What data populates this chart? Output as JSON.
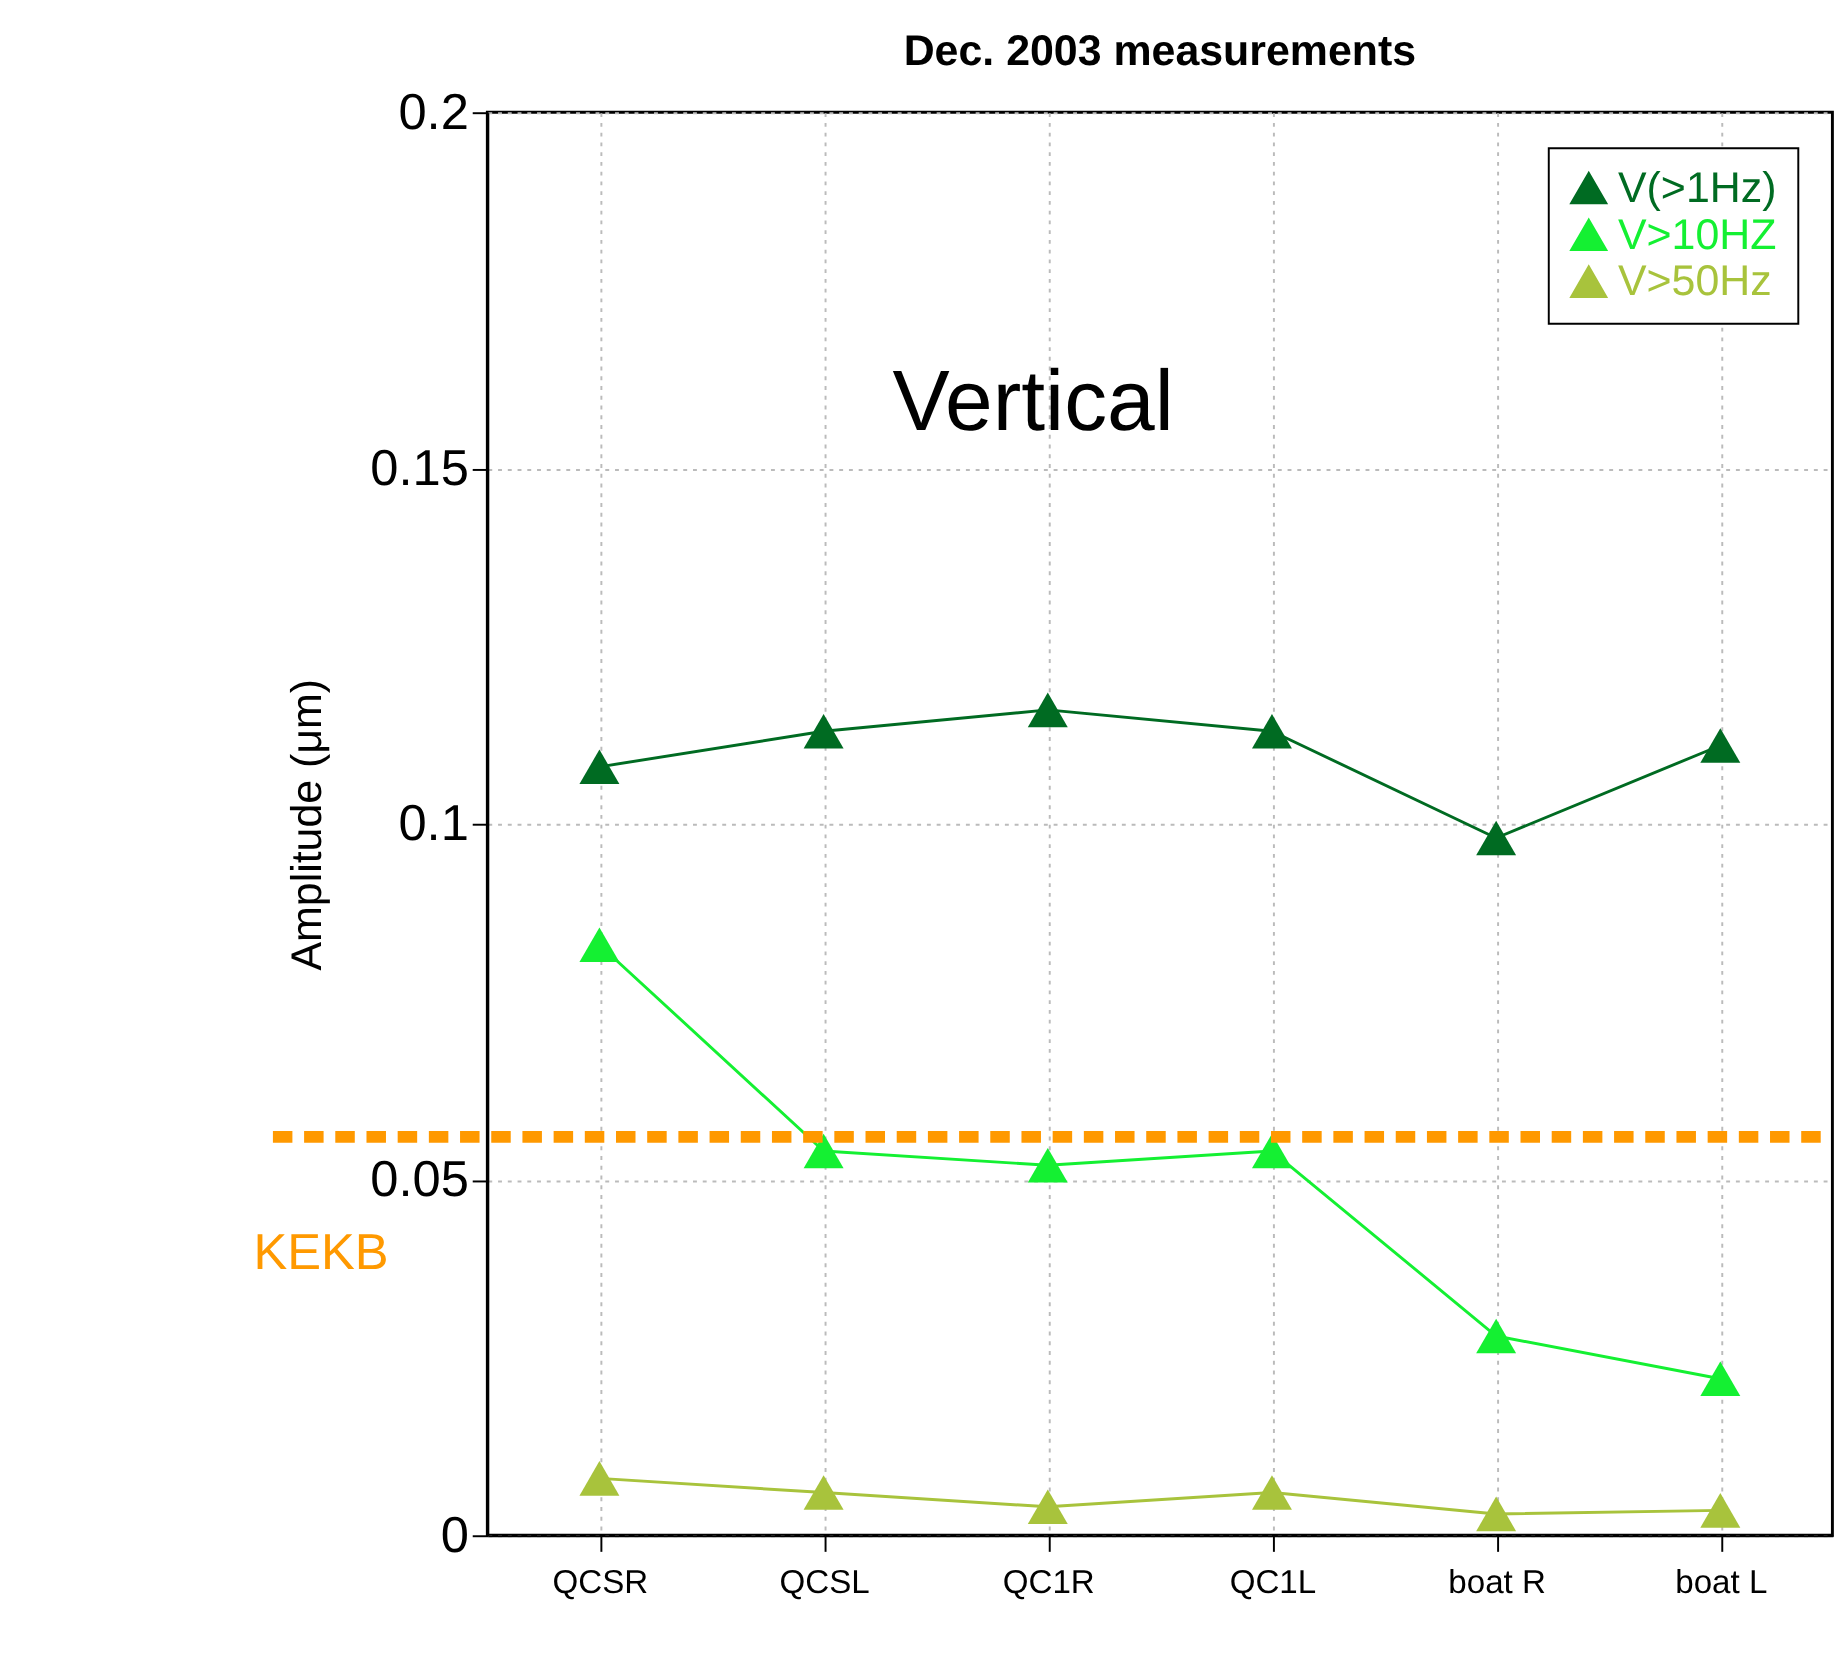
{
  "chart_data": {
    "type": "line",
    "title": "Dec. 2003 measurements",
    "ylabel": "Amplitude (μm)",
    "categories": [
      "QCSR",
      "QCSL",
      "QC1R",
      "QC1L",
      "boat R",
      "boat L"
    ],
    "series": [
      {
        "name": "V(>1Hz)",
        "color": "#006b22",
        "values": [
          0.108,
          0.113,
          0.116,
          0.113,
          0.098,
          0.111
        ]
      },
      {
        "name": "V>10HZ",
        "color": "#14f032",
        "values": [
          0.083,
          0.054,
          0.052,
          0.054,
          0.028,
          0.022
        ]
      },
      {
        "name": "V>50Hz",
        "color": "#a8c33c",
        "values": [
          0.008,
          0.006,
          0.004,
          0.006,
          0.003,
          0.0035
        ]
      }
    ],
    "ylim": [
      0,
      0.2
    ],
    "yticks": [
      0,
      0.05,
      0.1,
      0.15,
      0.2
    ],
    "ref_lines": [
      {
        "axis": "y",
        "value": 0.056,
        "label": "KEKB",
        "color": "#ff9900",
        "line_style": "dashed"
      }
    ],
    "annotations": [
      "Vertical"
    ],
    "grid": true,
    "legend": "top right",
    "marker": "triangle",
    "line_style": "solid"
  }
}
